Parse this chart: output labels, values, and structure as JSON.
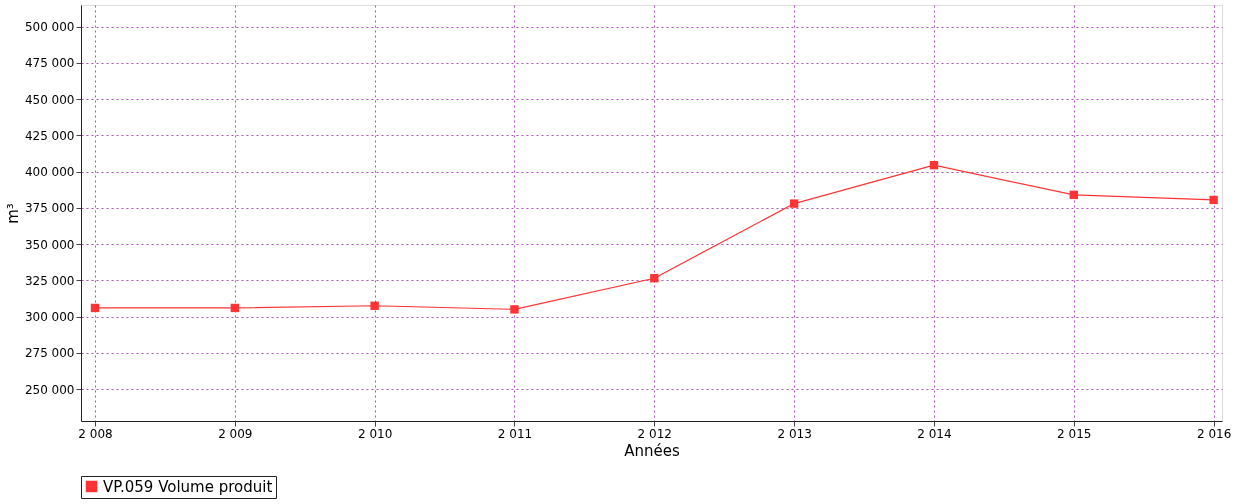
{
  "chart_data": {
    "type": "line",
    "xlabel": "Années",
    "ylabel": "m³",
    "x": [
      2008,
      2009,
      2010,
      2011,
      2012,
      2013,
      2014,
      2015,
      2016
    ],
    "series": [
      {
        "name": "VP.059 Volume produit",
        "color": "#ff3333",
        "values": [
          306000,
          306000,
          307500,
          305000,
          326500,
          378000,
          404500,
          384000,
          380500
        ]
      }
    ],
    "xlim": [
      2007.9,
      2016.06
    ],
    "xticks": [
      {
        "value": 2008,
        "label": "2 008"
      },
      {
        "value": 2009,
        "label": "2 009"
      },
      {
        "value": 2010,
        "label": "2 010"
      },
      {
        "value": 2011,
        "label": "2 011"
      },
      {
        "value": 2012,
        "label": "2 012"
      },
      {
        "value": 2013,
        "label": "2 013"
      },
      {
        "value": 2014,
        "label": "2 014"
      },
      {
        "value": 2015,
        "label": "2 015"
      },
      {
        "value": 2016,
        "label": "2 016"
      }
    ],
    "ylim": [
      228000,
      515000
    ],
    "yticks": [
      {
        "value": 250000,
        "label": "250 000"
      },
      {
        "value": 275000,
        "label": "275 000"
      },
      {
        "value": 300000,
        "label": "300 000"
      },
      {
        "value": 325000,
        "label": "325 000"
      },
      {
        "value": 350000,
        "label": "350 000"
      },
      {
        "value": 375000,
        "label": "375 000"
      },
      {
        "value": 400000,
        "label": "400 000"
      },
      {
        "value": 425000,
        "label": "425 000"
      },
      {
        "value": 450000,
        "label": "450 000"
      },
      {
        "value": 475000,
        "label": "475 000"
      },
      {
        "value": 500000,
        "label": "500 000"
      }
    ],
    "grid": true,
    "legend": "bottom",
    "marker": "square",
    "line_style": "solid"
  }
}
